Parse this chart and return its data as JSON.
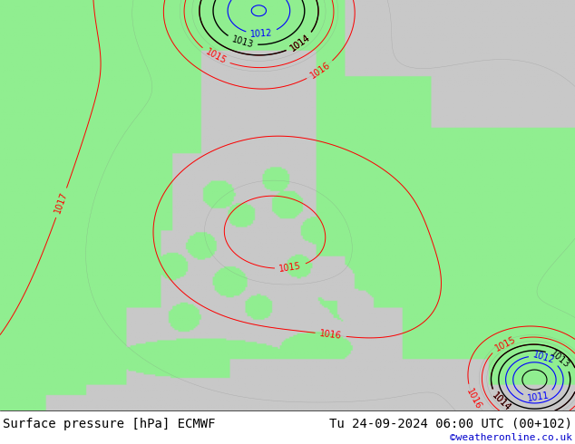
{
  "title_left": "Surface pressure [hPa] ECMWF",
  "title_right": "Tu 24-09-2024 06:00 UTC (00+102)",
  "credit": "©weatheronline.co.uk",
  "land_color": "#90ee90",
  "sea_color": "#c8c8c8",
  "contour_red": "#ff0000",
  "contour_black": "#000000",
  "contour_blue": "#0000ff",
  "contour_gray": "#808080",
  "bottom_bar_color": "#c8c8c8",
  "title_fontsize": 10,
  "credit_color": "#0000cc",
  "credit_fontsize": 8,
  "label_fontsize": 7,
  "fig_width": 6.34,
  "fig_height": 4.9,
  "dpi": 100
}
